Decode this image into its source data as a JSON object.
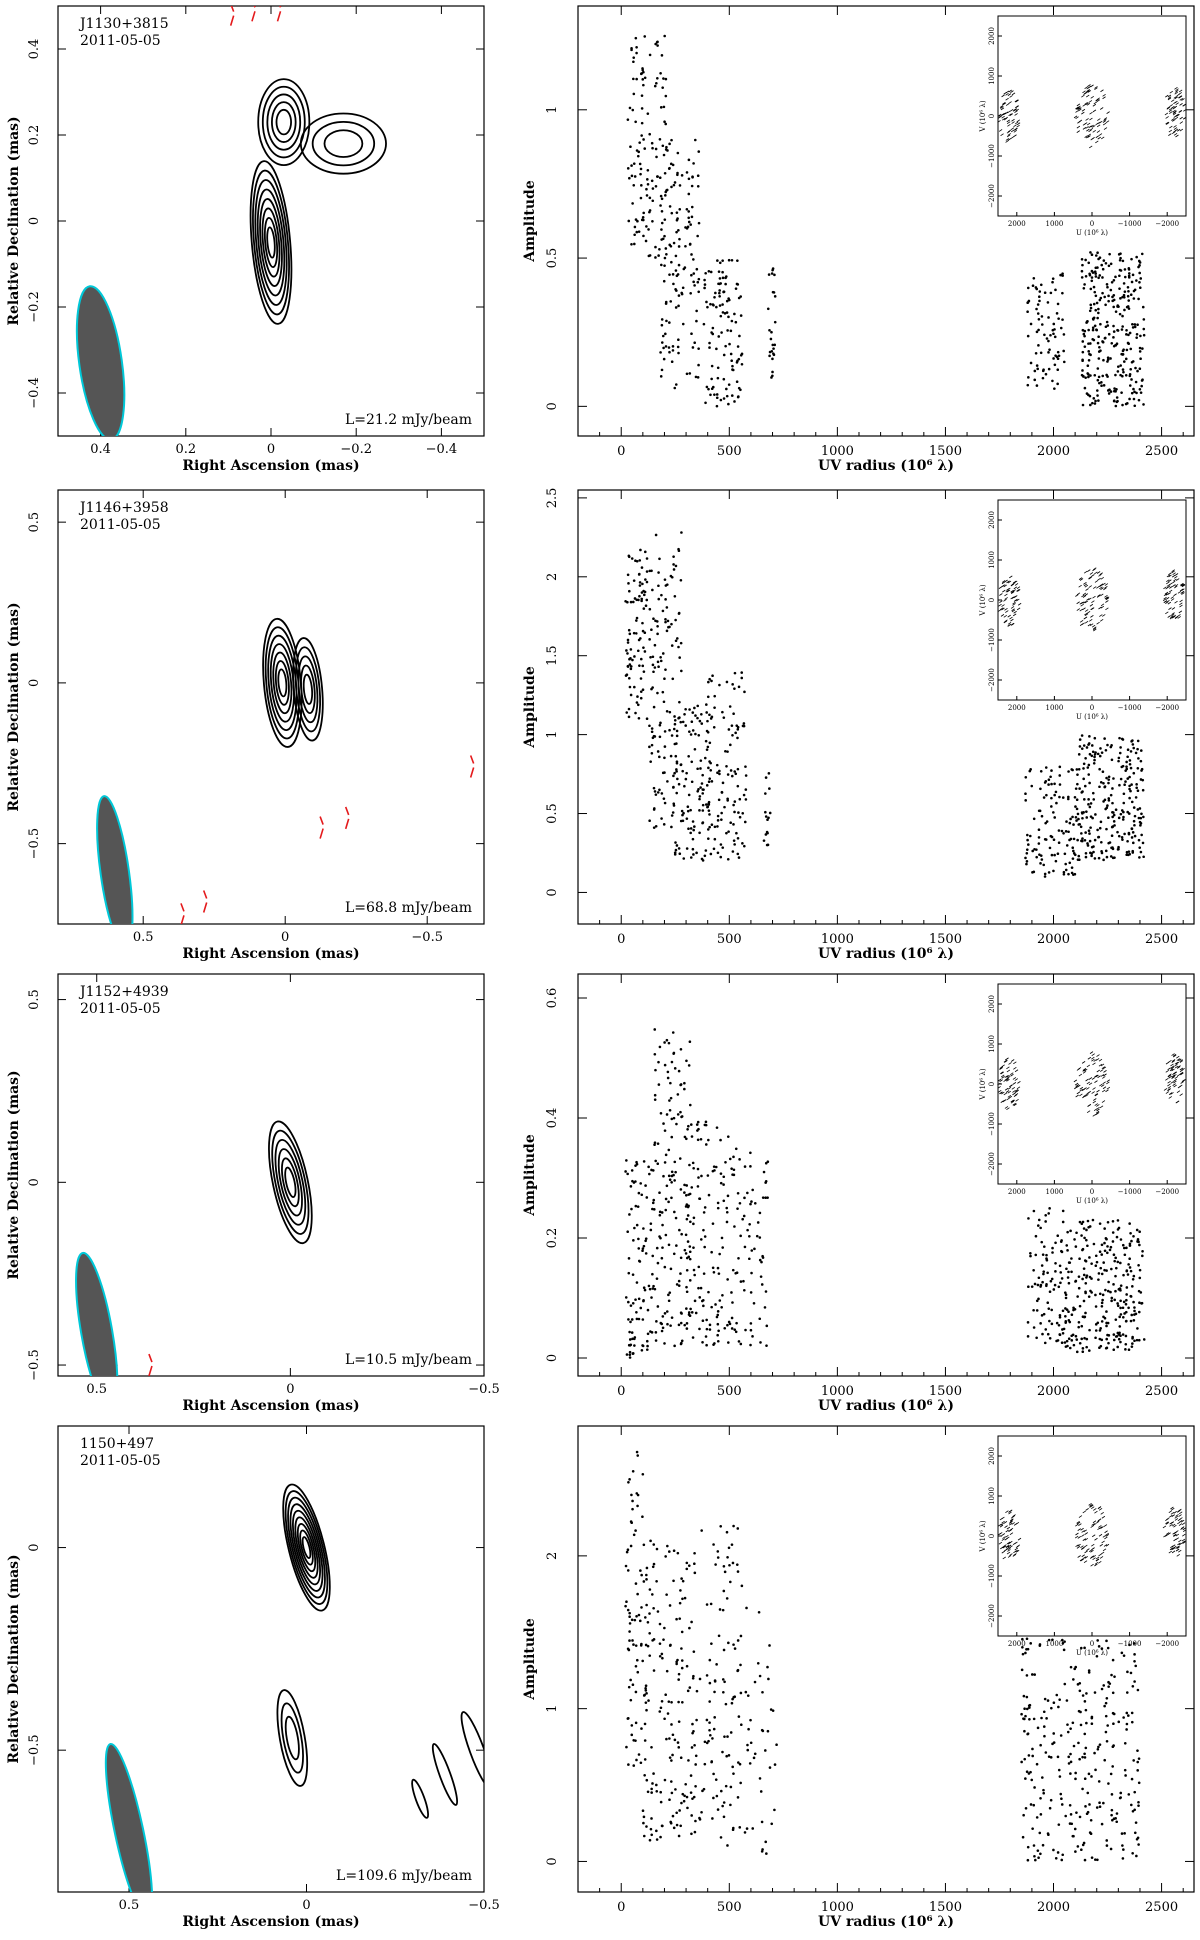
{
  "chart_data": [
    {
      "type": "contour",
      "source": "J1130+3815",
      "date": "2011-05-05",
      "peak_label": "L=21.2 mJy/beam",
      "xlabel": "Right Ascension  (mas)",
      "ylabel": "Relative Declination  (mas)",
      "xlim": [
        0.5,
        -0.5
      ],
      "ylim": [
        -0.5,
        0.5
      ],
      "xticks": [
        0.4,
        0.2,
        0,
        -0.2,
        -0.4
      ],
      "xtick_labels": [
        "0.4",
        "0.2",
        "0",
        "−0.2",
        "−0.4"
      ],
      "yticks": [
        -0.4,
        -0.2,
        0,
        0.2,
        0.4
      ],
      "ytick_labels": [
        "−0.4",
        "−0.2",
        "0",
        "0.2",
        "0.4"
      ],
      "contours": [
        {
          "x": 0.0,
          "y": -0.05,
          "rx": 0.045,
          "ry": 0.19,
          "rot": -5,
          "levels": 8
        },
        {
          "x": -0.03,
          "y": 0.23,
          "rx": 0.06,
          "ry": 0.1,
          "rot": 0,
          "levels": 5
        },
        {
          "x": -0.17,
          "y": 0.18,
          "rx": 0.1,
          "ry": 0.07,
          "rot": 0,
          "levels": 3
        }
      ],
      "neg_contours": [
        {
          "x": 0.09,
          "y": 0.48
        },
        {
          "x": 0.04,
          "y": 0.49
        },
        {
          "x": -0.02,
          "y": 0.49
        }
      ],
      "beam": {
        "x": 0.4,
        "y": -0.33,
        "major": 0.18,
        "minor": 0.05,
        "pa": -8
      }
    },
    {
      "type": "scatter",
      "title": "",
      "xlabel": "UV radius  (10⁶ λ)",
      "ylabel": "Amplitude",
      "xlim": [
        -200,
        2650
      ],
      "ylim": [
        -0.1,
        1.35
      ],
      "xticks": [
        0,
        500,
        1000,
        1500,
        2000,
        2500
      ],
      "xtick_labels": [
        "0",
        "500",
        "1000",
        "1500",
        "2000",
        "2500"
      ],
      "yticks": [
        0,
        0.5,
        1
      ],
      "ytick_labels": [
        "0",
        "0.5",
        "1"
      ],
      "clusters": [
        {
          "x": [
            30,
            210
          ],
          "y": [
            0.5,
            1.25
          ],
          "n": 120
        },
        {
          "x": [
            180,
            360
          ],
          "y": [
            0.05,
            0.9
          ],
          "n": 140
        },
        {
          "x": [
            380,
            560
          ],
          "y": [
            0.0,
            0.5
          ],
          "n": 110
        },
        {
          "x": [
            680,
            720
          ],
          "y": [
            0.08,
            0.52
          ],
          "n": 25
        },
        {
          "x": [
            1880,
            2050
          ],
          "y": [
            0.05,
            0.45
          ],
          "n": 80
        },
        {
          "x": [
            2130,
            2420
          ],
          "y": [
            0.0,
            0.52
          ],
          "n": 300
        }
      ],
      "inset": {
        "xlabel": "U (10⁶ λ)",
        "ylabel": "V (10⁶ λ)",
        "ticks": [
          2000,
          1000,
          0,
          -1000,
          -2000
        ],
        "tick_labels": [
          "2000",
          "1000",
          "0",
          "−1000",
          "−2000"
        ],
        "ytick_labels": [
          "2000",
          "1000",
          "0",
          "−1000",
          "−2000"
        ]
      }
    },
    {
      "type": "contour",
      "source": "J1146+3958",
      "date": "2011-05-05",
      "peak_label": "L=68.8 mJy/beam",
      "xlabel": "Right Ascension  (mas)",
      "ylabel": "Relative Declination  (mas)",
      "xlim": [
        0.8,
        -0.7
      ],
      "ylim": [
        -0.75,
        0.6
      ],
      "xticks": [
        0.5,
        0,
        -0.5
      ],
      "xtick_labels": [
        "0.5",
        "0",
        "−0.5"
      ],
      "yticks": [
        -0.5,
        0,
        0.5
      ],
      "ytick_labels": [
        "−0.5",
        "0",
        "0.5"
      ],
      "contours": [
        {
          "x": 0.01,
          "y": 0.0,
          "rx": 0.065,
          "ry": 0.2,
          "rot": -5,
          "levels": 7
        },
        {
          "x": -0.08,
          "y": -0.02,
          "rx": 0.05,
          "ry": 0.16,
          "rot": -5,
          "levels": 5
        }
      ],
      "neg_contours": [
        {
          "x": 0.36,
          "y": -0.72
        },
        {
          "x": 0.28,
          "y": -0.68
        },
        {
          "x": -0.13,
          "y": -0.45
        },
        {
          "x": -0.22,
          "y": -0.42
        },
        {
          "x": -0.66,
          "y": -0.26
        }
      ],
      "beam": {
        "x": 0.6,
        "y": -0.59,
        "major": 0.24,
        "minor": 0.05,
        "pa": -8
      }
    },
    {
      "type": "scatter",
      "title": "",
      "xlabel": "UV radius  (10⁶ λ)",
      "ylabel": "Amplitude",
      "xlim": [
        -200,
        2650
      ],
      "ylim": [
        -0.2,
        2.55
      ],
      "xticks": [
        0,
        500,
        1000,
        1500,
        2000,
        2500
      ],
      "xtick_labels": [
        "0",
        "500",
        "1000",
        "1500",
        "2000",
        "2500"
      ],
      "yticks": [
        0,
        0.5,
        1,
        1.5,
        2,
        2.5
      ],
      "ytick_labels": [
        "0",
        "0.5",
        "1",
        "1.5",
        "2",
        "2.5"
      ],
      "clusters": [
        {
          "x": [
            20,
            120
          ],
          "y": [
            1.1,
            2.2
          ],
          "n": 90
        },
        {
          "x": [
            130,
            280
          ],
          "y": [
            0.4,
            2.3
          ],
          "n": 130
        },
        {
          "x": [
            240,
            420
          ],
          "y": [
            0.2,
            1.2
          ],
          "n": 120
        },
        {
          "x": [
            400,
            580
          ],
          "y": [
            0.2,
            1.4
          ],
          "n": 100
        },
        {
          "x": [
            660,
            690
          ],
          "y": [
            0.3,
            0.85
          ],
          "n": 15
        },
        {
          "x": [
            1870,
            2100
          ],
          "y": [
            0.1,
            0.8
          ],
          "n": 110
        },
        {
          "x": [
            2100,
            2420
          ],
          "y": [
            0.2,
            1.0
          ],
          "n": 260
        }
      ],
      "inset": {
        "xlabel": "U (10⁶ λ)",
        "ylabel": "V (10⁶ λ)",
        "ticks": [
          2000,
          1000,
          0,
          -1000,
          -2000
        ],
        "tick_labels": [
          "2000",
          "1000",
          "0",
          "−1000",
          "−2000"
        ],
        "ytick_labels": [
          "2000",
          "1000",
          "0",
          "−1000",
          "−2000"
        ]
      }
    },
    {
      "type": "contour",
      "source": "J1152+4939",
      "date": "2011-05-05",
      "peak_label": "L=10.5 mJy/beam",
      "xlabel": "Right Ascension  (mas)",
      "ylabel": "Relative Declination  (mas)",
      "xlim": [
        0.6,
        -0.5
      ],
      "ylim": [
        -0.53,
        0.57
      ],
      "xticks": [
        0.5,
        0,
        -0.5
      ],
      "xtick_labels": [
        "0.5",
        "0",
        "−0.5"
      ],
      "yticks": [
        -0.5,
        0,
        0.5
      ],
      "ytick_labels": [
        "−0.5",
        "0",
        "0.5"
      ],
      "contours": [
        {
          "x": 0.0,
          "y": 0.0,
          "rx": 0.045,
          "ry": 0.17,
          "rot": -12,
          "levels": 6
        }
      ],
      "neg_contours": [
        {
          "x": 0.45,
          "y": -0.51
        },
        {
          "x": 0.36,
          "y": -0.5
        }
      ],
      "beam": {
        "x": 0.5,
        "y": -0.41,
        "major": 0.22,
        "minor": 0.04,
        "pa": -10
      }
    },
    {
      "type": "scatter",
      "title": "",
      "xlabel": "UV radius  (10⁶ λ)",
      "ylabel": "Amplitude",
      "xlim": [
        -200,
        2650
      ],
      "ylim": [
        -0.03,
        0.64
      ],
      "xticks": [
        0,
        500,
        1000,
        1500,
        2000,
        2500
      ],
      "xtick_labels": [
        "0",
        "500",
        "1000",
        "1500",
        "2000",
        "2500"
      ],
      "yticks": [
        0,
        0.2,
        0.4,
        0.6
      ],
      "ytick_labels": [
        "0",
        "0.2",
        "0.4",
        "0.6"
      ],
      "clusters": [
        {
          "x": [
            20,
            150
          ],
          "y": [
            0.0,
            0.33
          ],
          "n": 100
        },
        {
          "x": [
            150,
            320
          ],
          "y": [
            0.02,
            0.55
          ],
          "n": 150
        },
        {
          "x": [
            300,
            520
          ],
          "y": [
            0.02,
            0.4
          ],
          "n": 130
        },
        {
          "x": [
            520,
            680
          ],
          "y": [
            0.02,
            0.35
          ],
          "n": 70
        },
        {
          "x": [
            1880,
            2050
          ],
          "y": [
            0.02,
            0.25
          ],
          "n": 90
        },
        {
          "x": [
            2050,
            2420
          ],
          "y": [
            0.01,
            0.23
          ],
          "n": 280
        }
      ],
      "inset": {
        "xlabel": "U (10⁶ λ)",
        "ylabel": "V (10⁶ λ)",
        "ticks": [
          2000,
          1000,
          0,
          -1000,
          -2000
        ],
        "tick_labels": [
          "2000",
          "1000",
          "0",
          "−1000",
          "−2000"
        ],
        "ytick_labels": [
          "2000",
          "1000",
          "0",
          "−1000",
          "−2000"
        ]
      }
    },
    {
      "type": "contour",
      "source": "1150+497",
      "date": "2011-05-05",
      "peak_label": "L=109.6 mJy/beam",
      "xlabel": "Right Ascension  (mas)",
      "ylabel": "Relative Declination  (mas)",
      "xlim": [
        0.7,
        -0.5
      ],
      "ylim": [
        -0.85,
        0.3
      ],
      "xticks": [
        0.5,
        0,
        -0.5
      ],
      "xtick_labels": [
        "0.5",
        "0",
        "−0.5"
      ],
      "yticks": [
        -0.5,
        0
      ],
      "ytick_labels": [
        "−0.5",
        "0"
      ],
      "contours": [
        {
          "x": 0.0,
          "y": 0.0,
          "rx": 0.05,
          "ry": 0.16,
          "rot": -14,
          "levels": 9
        },
        {
          "x": 0.04,
          "y": -0.47,
          "rx": 0.035,
          "ry": 0.12,
          "rot": -10,
          "levels": 3
        },
        {
          "x": -0.32,
          "y": -0.62,
          "rx": 0.012,
          "ry": 0.05,
          "rot": -20,
          "levels": 1
        },
        {
          "x": -0.39,
          "y": -0.56,
          "rx": 0.015,
          "ry": 0.08,
          "rot": -20,
          "levels": 1
        },
        {
          "x": -0.48,
          "y": -0.5,
          "rx": 0.02,
          "ry": 0.1,
          "rot": -20,
          "levels": 1
        }
      ],
      "neg_contours": [],
      "beam": {
        "x": 0.5,
        "y": -0.7,
        "major": 0.22,
        "minor": 0.04,
        "pa": -12
      }
    },
    {
      "type": "scatter",
      "title": "",
      "xlabel": "UV radius  (10⁶ λ)",
      "ylabel": "Amplitude",
      "xlim": [
        -200,
        2650
      ],
      "ylim": [
        -0.2,
        2.85
      ],
      "xticks": [
        0,
        500,
        1000,
        1500,
        2000,
        2500
      ],
      "xtick_labels": [
        "0",
        "500",
        "1000",
        "1500",
        "2000",
        "2500"
      ],
      "yticks": [
        0,
        1,
        2
      ],
      "ytick_labels": [
        "0",
        "1",
        "2"
      ],
      "clusters": [
        {
          "x": [
            20,
            100
          ],
          "y": [
            0.6,
            2.7
          ],
          "n": 70
        },
        {
          "x": [
            100,
            300
          ],
          "y": [
            0.1,
            2.1
          ],
          "n": 140
        },
        {
          "x": [
            300,
            560
          ],
          "y": [
            0.1,
            2.2
          ],
          "n": 140
        },
        {
          "x": [
            570,
            720
          ],
          "y": [
            0.05,
            1.7
          ],
          "n": 40
        },
        {
          "x": [
            1850,
            2000
          ],
          "y": [
            0.0,
            1.9
          ],
          "n": 110
        },
        {
          "x": [
            2000,
            2400
          ],
          "y": [
            0.0,
            1.8
          ],
          "n": 230
        }
      ],
      "inset": {
        "xlabel": "U (10⁶ λ)",
        "ylabel": "V (10⁶ λ)",
        "ticks": [
          2000,
          1000,
          0,
          -1000,
          -2000
        ],
        "tick_labels": [
          "2000",
          "1000",
          "0",
          "−1000",
          "−2000"
        ],
        "ytick_labels": [
          "2000",
          "1000",
          "0",
          "−1000",
          "−2000"
        ]
      }
    }
  ],
  "colors": {
    "contour": "#000000",
    "neg_contour": "#e41a1c",
    "beam_fill": "#555555",
    "beam_edge": "#00c8d8",
    "point": "#000000"
  }
}
